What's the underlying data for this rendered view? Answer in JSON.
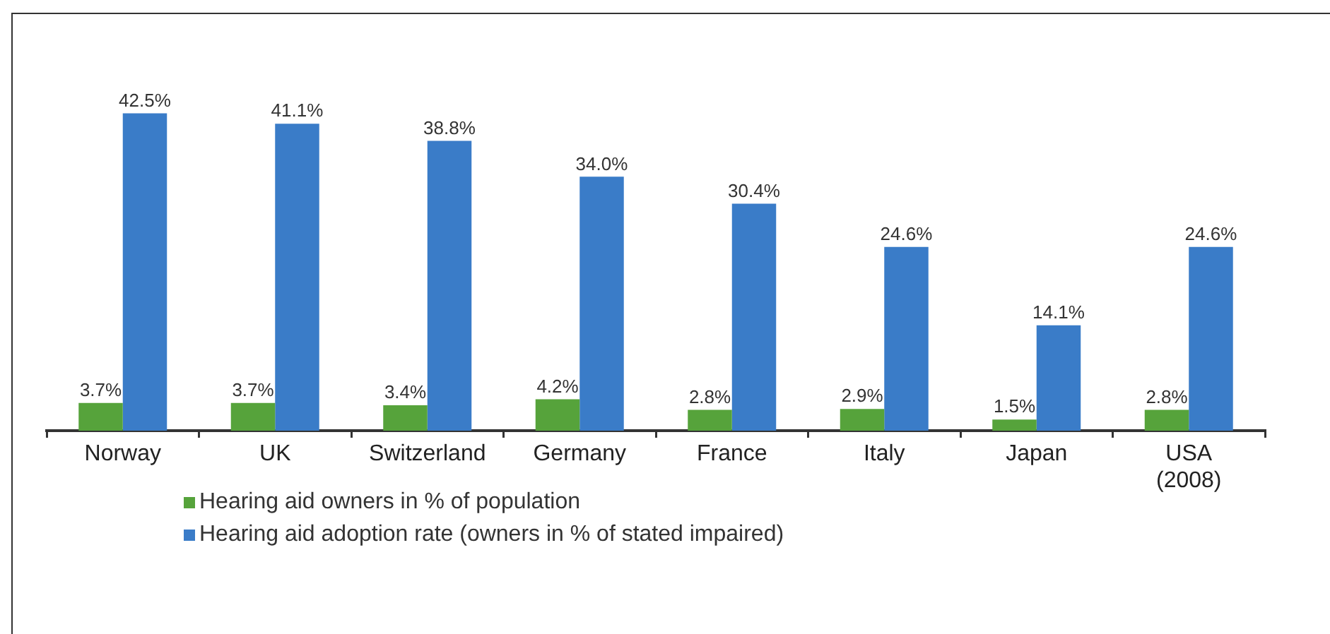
{
  "chart_data": {
    "type": "bar",
    "categories": [
      "Norway",
      "UK",
      "Switzerland",
      "Germany",
      "France",
      "Italy",
      "Japan",
      "USA\n(2008)"
    ],
    "series": [
      {
        "name": "Hearing aid owners in % of population",
        "color": "#56a33b",
        "values": [
          3.7,
          3.7,
          3.4,
          4.2,
          2.8,
          2.9,
          1.5,
          2.8
        ],
        "value_labels": [
          "3.7%",
          "3.7%",
          "3.4%",
          "4.2%",
          "2.8%",
          "2.9%",
          "1.5%",
          "2.8%"
        ]
      },
      {
        "name": "Hearing aid adoption rate (owners in % of stated impaired)",
        "color": "#3a7cc8",
        "values": [
          42.5,
          41.1,
          38.8,
          34.0,
          30.4,
          24.6,
          14.1,
          24.6
        ],
        "value_labels": [
          "42.5%",
          "41.1%",
          "38.8%",
          "34.0%",
          "30.4%",
          "24.6%",
          "14.1%",
          "24.6%"
        ]
      }
    ],
    "tick_labels": "x",
    "legend": "bottom"
  }
}
